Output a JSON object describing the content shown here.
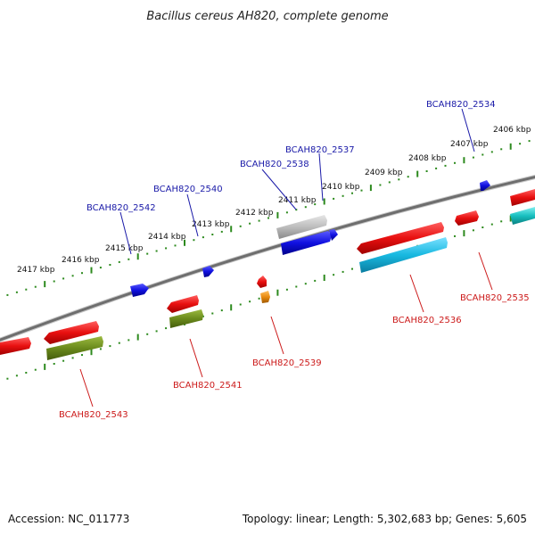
{
  "title": "Bacillus cereus AH820, complete genome",
  "footer": {
    "accession": "Accession: NC_011773",
    "summary": "Topology: linear; Length: 5,302,683 bp; Genes: 5,605"
  },
  "colors": {
    "backbone": "#7a7a7a",
    "ticks": "#2d8a1e",
    "label_top": "#1a1aa8",
    "label_bottom": "#cc1a1a",
    "red": "#e81010",
    "blue": "#1010e0",
    "gray": "#b4b4b4",
    "olive": "#6a8a1c",
    "cyan": "#18b8e0",
    "teal": "#18c0c0",
    "orange": "#e88a10"
  },
  "scale_labels": [
    "2406 kbp",
    "2407 kbp",
    "2408 kbp",
    "2409 kbp",
    "2410 kbp",
    "2411 kbp",
    "2412 kbp",
    "2413 kbp",
    "2414 kbp",
    "2415 kbp",
    "2416 kbp",
    "2417 kbp"
  ],
  "top_gene_labels": [
    "BCAH820_2534",
    "BCAH820_2537",
    "BCAH820_2538",
    "BCAH820_2540",
    "BCAH820_2542"
  ],
  "bottom_gene_labels": [
    "BCAH820_2535",
    "BCAH820_2536",
    "BCAH820_2539",
    "BCAH820_2541",
    "BCAH820_2543"
  ]
}
